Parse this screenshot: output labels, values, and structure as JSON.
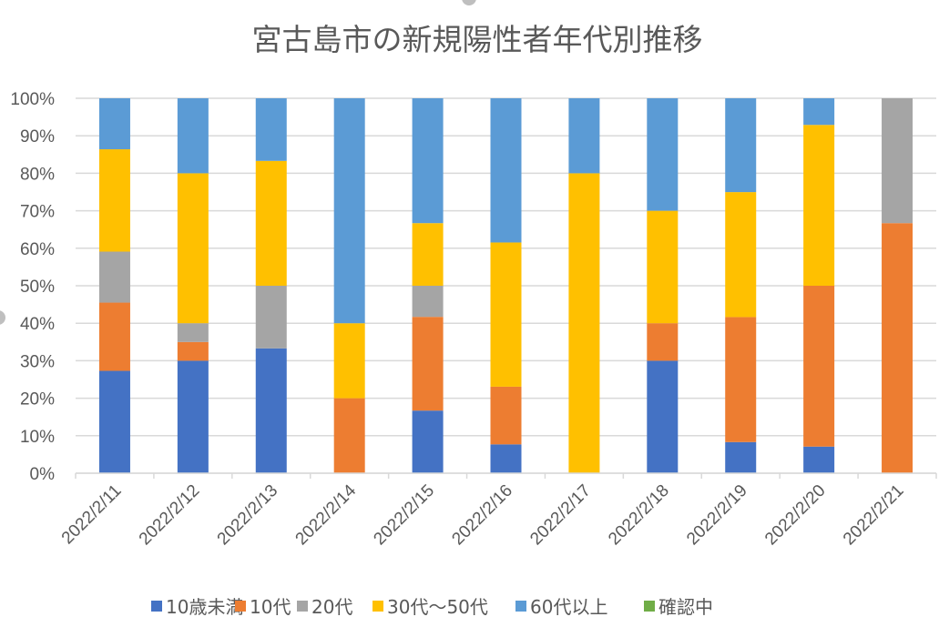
{
  "chart_data": {
    "type": "bar",
    "stacking": "percent",
    "title": "宮古島市の新規陽性者年代別推移",
    "xlabel": "",
    "ylabel": "",
    "ylim": [
      0,
      100
    ],
    "yticks": [
      "0%",
      "10%",
      "20%",
      "30%",
      "40%",
      "50%",
      "60%",
      "70%",
      "80%",
      "90%",
      "100%"
    ],
    "grid": true,
    "legend_position": "bottom",
    "categories": [
      "2022/2/11",
      "2022/2/12",
      "2022/2/13",
      "2022/2/14",
      "2022/2/15",
      "2022/2/16",
      "2022/2/17",
      "2022/2/18",
      "2022/2/19",
      "2022/2/20",
      "2022/2/21"
    ],
    "series": [
      {
        "name": "10歳未満",
        "color": "#4472C4",
        "values": [
          27.3,
          30.0,
          33.3,
          0,
          16.7,
          7.7,
          0,
          30.0,
          8.3,
          7.1,
          0
        ]
      },
      {
        "name": "10代",
        "color": "#ED7D31",
        "values": [
          18.2,
          5.0,
          0,
          20.0,
          25.0,
          15.4,
          0,
          10.0,
          33.3,
          42.9,
          66.7
        ]
      },
      {
        "name": "20代",
        "color": "#A5A5A5",
        "values": [
          13.6,
          5.0,
          16.7,
          0,
          8.3,
          0,
          0,
          0,
          0,
          0,
          33.3
        ]
      },
      {
        "name": "30代～50代",
        "color": "#FFC000",
        "values": [
          27.3,
          40.0,
          33.3,
          20.0,
          16.7,
          38.5,
          80.0,
          30.0,
          33.3,
          42.9,
          0
        ]
      },
      {
        "name": "60代以上",
        "color": "#5B9BD5",
        "values": [
          13.6,
          20.0,
          16.7,
          60.0,
          33.3,
          38.5,
          20.0,
          30.0,
          25.0,
          7.1,
          0
        ]
      },
      {
        "name": "確認中",
        "color": "#70AD47",
        "values": [
          0,
          0,
          0,
          0,
          0,
          0,
          0,
          0,
          0,
          0,
          0
        ]
      }
    ]
  }
}
